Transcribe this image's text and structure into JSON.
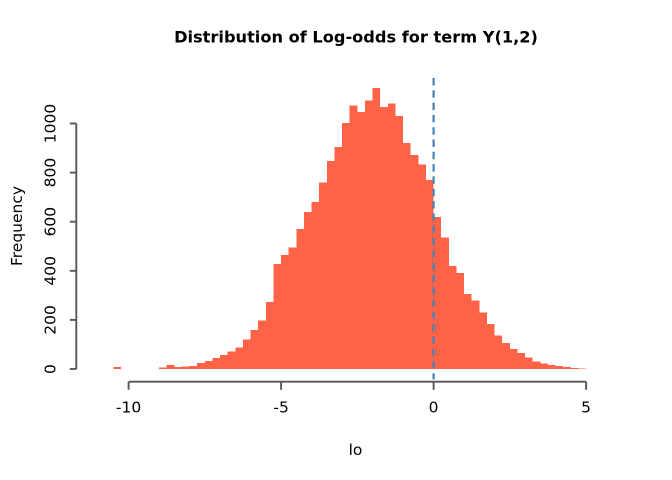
{
  "chart_data": {
    "type": "bar",
    "subtype": "histogram",
    "title": "Distribution of Log-odds for term Y(1,2)",
    "xlabel": "lo",
    "ylabel": "Frequency",
    "bin_start": -10.75,
    "bin_width": 0.25,
    "counts": [
      0,
      8,
      0,
      0,
      0,
      0,
      0,
      7,
      16,
      9,
      11,
      13,
      25,
      33,
      45,
      57,
      72,
      88,
      120,
      158,
      197,
      272,
      428,
      465,
      494,
      571,
      639,
      680,
      760,
      848,
      905,
      1003,
      1073,
      1046,
      1094,
      1144,
      1067,
      1082,
      1030,
      920,
      872,
      834,
      770,
      620,
      535,
      420,
      392,
      306,
      279,
      231,
      184,
      136,
      105,
      82,
      65,
      47,
      31,
      23,
      17,
      12,
      8,
      5,
      2
    ],
    "x_ticks": [
      -10,
      -5,
      0,
      5
    ],
    "y_ticks": [
      0,
      200,
      400,
      600,
      800,
      1000
    ],
    "xlim": [
      -11.7,
      6.7
    ],
    "ylim": [
      0,
      1186
    ],
    "grid": false,
    "legend": null,
    "bar_color": "#FF6347",
    "vline": {
      "x": 0,
      "style": "dashed",
      "color": "#4682B4"
    }
  }
}
